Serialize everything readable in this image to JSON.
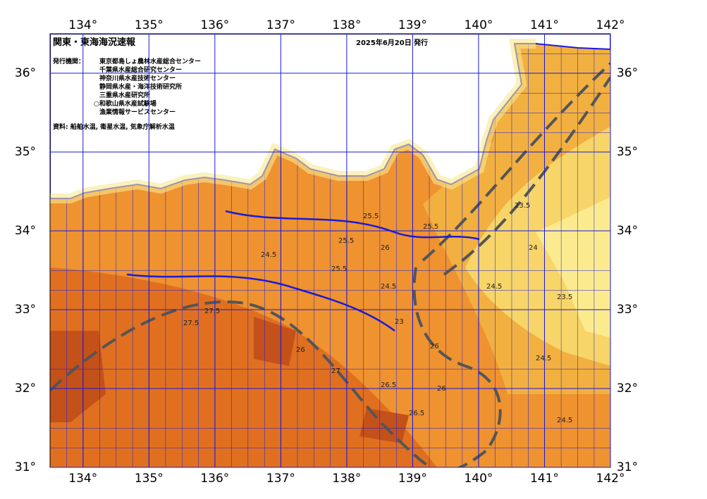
{
  "header": {
    "title": "関東・東海海況速報",
    "date": "2025年6月20日 発行"
  },
  "agencies": {
    "heading": "発行機関：",
    "items": [
      "東京都島しょ農林水産総合センター",
      "千葉県水産総合研究センター",
      "神奈川県水産技術センター",
      "静岡県水産・海洋技術研究所",
      "三重県水産研究所",
      "○和歌山県水産試験場",
      "漁業情報サービスセンター"
    ]
  },
  "source": "資料: 船舶水温, 衛星水温, 気象庁解析水温",
  "map": {
    "xlim": [
      133.5,
      142
    ],
    "ylim": [
      31,
      36.5
    ],
    "xticks": [
      {
        "value": 134,
        "label": "134°"
      },
      {
        "value": 135,
        "label": "135°"
      },
      {
        "value": 136,
        "label": "136°"
      },
      {
        "value": 137,
        "label": "137°"
      },
      {
        "value": 138,
        "label": "138°"
      },
      {
        "value": 139,
        "label": "139°"
      },
      {
        "value": 140,
        "label": "140°"
      },
      {
        "value": 141,
        "label": "141°"
      },
      {
        "value": 142,
        "label": "142°"
      }
    ],
    "yticks": [
      {
        "value": 31,
        "label": "31°"
      },
      {
        "value": 32,
        "label": "32°"
      },
      {
        "value": 33,
        "label": "33°"
      },
      {
        "value": 34,
        "label": "34°"
      },
      {
        "value": 35,
        "label": "35°"
      },
      {
        "value": 36,
        "label": "36°"
      }
    ]
  },
  "contour_labels": [
    25.5,
    26,
    25.5,
    24.5,
    25.5,
    24.5,
    27.5,
    27.5,
    26,
    26.5,
    26,
    27,
    26.5,
    26,
    24.5,
    23.5,
    24,
    23.5,
    24.5,
    24.5,
    23,
    25.5
  ]
}
